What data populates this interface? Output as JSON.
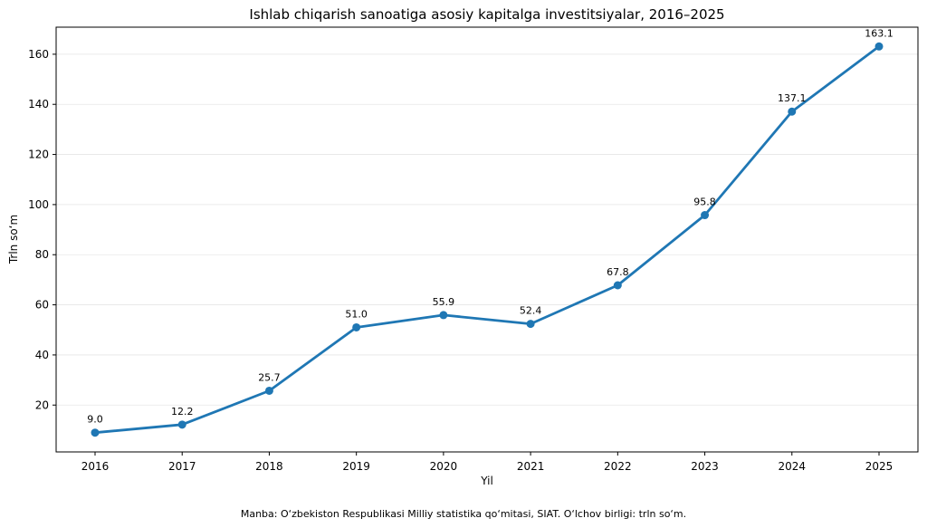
{
  "chart_data": {
    "type": "line",
    "title": "Ishlab chiqarish sanoatiga asosiy kapitalga investitsiyalar, 2016–2025",
    "xlabel": "Yil",
    "ylabel": "Trln so‘m",
    "source_note": "Manba: O‘zbekiston Respublikasi Milliy statistika qo‘mitasi, SIAT. O‘lchov birligi: trln so‘m.",
    "x": [
      "2016",
      "2017",
      "2018",
      "2019",
      "2020",
      "2021",
      "2022",
      "2023",
      "2024",
      "2025"
    ],
    "values": [
      9.0,
      12.2,
      25.7,
      51.0,
      55.9,
      52.4,
      67.8,
      95.8,
      137.1,
      163.1
    ],
    "data_labels": [
      "9.0",
      "12.2",
      "25.7",
      "51.0",
      "55.9",
      "52.4",
      "67.8",
      "95.8",
      "137.1",
      "163.1"
    ],
    "yticks": [
      20,
      40,
      60,
      80,
      100,
      120,
      140,
      160
    ],
    "ylim": [
      1.3,
      170.8
    ],
    "grid": "horizontal",
    "color": "#1f77b4"
  }
}
